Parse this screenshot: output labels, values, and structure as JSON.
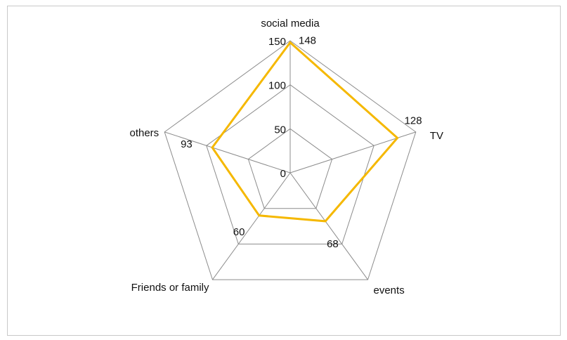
{
  "chart_data": {
    "type": "radar",
    "title": "",
    "categories": [
      "social media",
      "TV",
      "events",
      "Friends or family",
      "others"
    ],
    "series": [
      {
        "values": [
          148,
          128,
          68,
          60,
          93
        ]
      }
    ],
    "rlim": [
      0,
      150
    ],
    "radial_ticks": [
      0,
      50,
      100,
      150
    ],
    "grid": true,
    "legend": "none",
    "data_labels": [
      "148",
      "128",
      "68",
      "60",
      "93"
    ],
    "tick_labels": [
      "0",
      "50",
      "100",
      "150"
    ],
    "colors": {
      "series": "#f5b800",
      "grid": "#8c8c8c",
      "frame": "#c8c8c8"
    }
  }
}
